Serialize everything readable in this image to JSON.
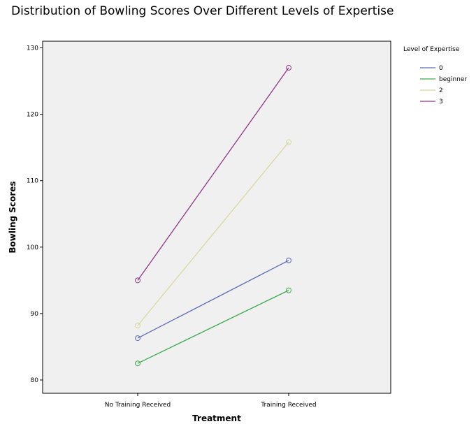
{
  "chart_data": {
    "type": "line",
    "title": "Distribution of Bowling Scores Over Different Levels of Expertise",
    "xlabel": "Treatment",
    "ylabel": "Bowling Scores",
    "categories": [
      "No Training Received",
      "Training Received"
    ],
    "ylim": [
      78,
      131
    ],
    "yticks": [
      80,
      90,
      100,
      110,
      120,
      130
    ],
    "grid": false,
    "legend": {
      "title": "Level of Expertise",
      "placement": "right"
    },
    "series": [
      {
        "name": "0",
        "values": [
          86.3,
          98.0
        ],
        "color": "#5b6bb5"
      },
      {
        "name": "beginner",
        "values": [
          82.5,
          93.5
        ],
        "color": "#3cab4a"
      },
      {
        "name": "2",
        "values": [
          88.2,
          115.8
        ],
        "color": "#d8d8a0"
      },
      {
        "name": "3",
        "values": [
          95.0,
          127.0
        ],
        "color": "#8c3a84"
      }
    ],
    "plot_background": "#f0f0f0"
  }
}
